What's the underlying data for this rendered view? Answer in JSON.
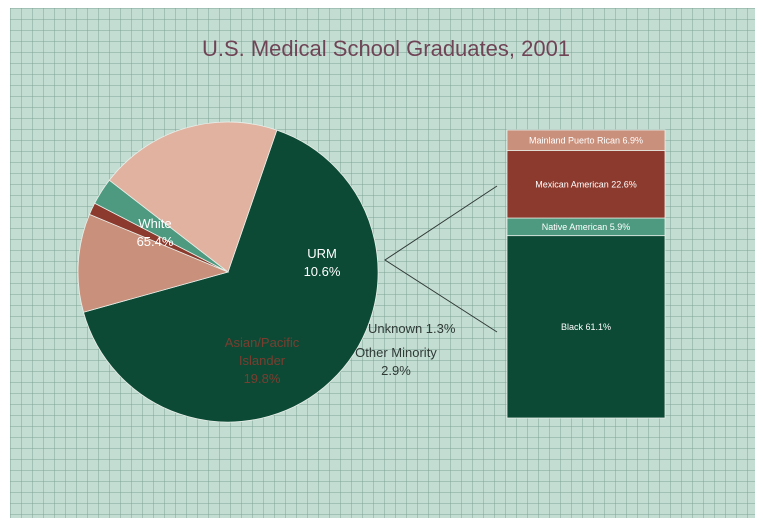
{
  "chart_data": [
    {
      "type": "pie",
      "title": "U.S. Medical School Graduates, 2001",
      "slices": [
        {
          "name": "White",
          "value": 65.4,
          "label": [
            "White",
            "65.4%"
          ],
          "color": "#0c4a35"
        },
        {
          "name": "URM",
          "value": 10.6,
          "label": [
            "URM",
            "10.6%"
          ],
          "color": "#c9907c"
        },
        {
          "name": "Unknown",
          "value": 1.3,
          "label": [
            "Unknown 1.3%"
          ],
          "color": "#8c3a2d"
        },
        {
          "name": "Other Minority",
          "value": 2.9,
          "label": [
            "Other Minority",
            "2.9%"
          ],
          "color": "#4e9a80"
        },
        {
          "name": "Asian/Pacific Islander",
          "value": 19.8,
          "label": [
            "Asian/Pacific",
            "Islander",
            "19.8%"
          ],
          "color": "#e2b2a1"
        }
      ]
    },
    {
      "type": "bar",
      "stacked": true,
      "breakdown_of": "URM",
      "segments": [
        {
          "name": "Black",
          "value": 61.1,
          "label": "Black 61.1%",
          "color": "#0c4a35"
        },
        {
          "name": "Native American",
          "value": 5.9,
          "label": "Native American 5.9%",
          "color": "#4e9a80"
        },
        {
          "name": "Mexican American",
          "value": 22.6,
          "label": "Mexican American 22.6%",
          "color": "#8c3a2d"
        },
        {
          "name": "Mainland Puerto Rican",
          "value": 6.9,
          "label": "Mainland Puerto Rican 6.9%",
          "color": "#c9907c"
        }
      ]
    }
  ]
}
